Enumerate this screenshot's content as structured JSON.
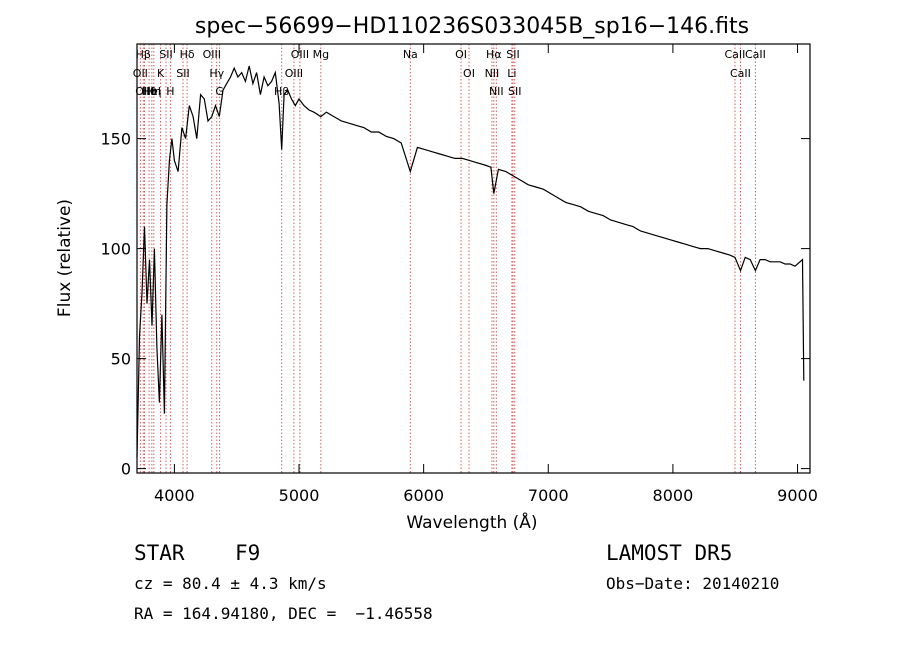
{
  "chart_data": {
    "type": "line",
    "title": "spec−56699−HD110236S033045B_sp16−146.fits",
    "xlabel": "Wavelength (Å)",
    "ylabel": "Flux (relative)",
    "xlim": [
      3700,
      9100
    ],
    "ylim": [
      -2,
      193
    ],
    "x_ticks": [
      4000,
      5000,
      6000,
      7000,
      8000,
      9000
    ],
    "y_ticks": [
      0,
      50,
      100,
      150
    ],
    "grid": false,
    "line_color": "#000000",
    "marker_color": "#d06060",
    "lines": [
      {
        "label": "Hβ",
        "wl": 3750
      },
      {
        "label": "OII",
        "wl": 3727
      },
      {
        "label": "OIII",
        "wl": 3760
      },
      {
        "label": "Hθ",
        "wl": 3797
      },
      {
        "label": "HeI",
        "wl": 3819
      },
      {
        "label": "Hη",
        "wl": 3835
      },
      {
        "label": "K",
        "wl": 3889
      },
      {
        "label": "SII",
        "wl": 3933
      },
      {
        "label": "H",
        "wl": 3968
      },
      {
        "label": "Hδ",
        "wl": 4102
      },
      {
        "label": "SII",
        "wl": 4069
      },
      {
        "label": "OIII",
        "wl": 4300
      },
      {
        "label": "Hγ",
        "wl": 4340
      },
      {
        "label": "G",
        "wl": 4363
      },
      {
        "label": "OIII",
        "wl": 5007
      },
      {
        "label": "OIII",
        "wl": 4959
      },
      {
        "label": "Hβ",
        "wl": 4861
      },
      {
        "label": "Mg",
        "wl": 5175
      },
      {
        "label": "Na",
        "wl": 5893
      },
      {
        "label": "OI",
        "wl": 6300
      },
      {
        "label": "OI",
        "wl": 6364
      },
      {
        "label": "Hα",
        "wl": 6563
      },
      {
        "label": "NII",
        "wl": 6548
      },
      {
        "label": "NII",
        "wl": 6583
      },
      {
        "label": "SII",
        "wl": 6717
      },
      {
        "label": "Li",
        "wl": 6708
      },
      {
        "label": "SII",
        "wl": 6731
      },
      {
        "label": "CaII",
        "wl": 8498
      },
      {
        "label": "CaII",
        "wl": 8542
      },
      {
        "label": "CaII",
        "wl": 8662
      }
    ],
    "series": [
      {
        "x": [
          3700,
          3720,
          3740,
          3760,
          3780,
          3800,
          3820,
          3840,
          3860,
          3880,
          3900,
          3920,
          3940,
          3960,
          3980,
          4000,
          4030,
          4060,
          4090,
          4120,
          4150,
          4180,
          4210,
          4240,
          4270,
          4300,
          4330,
          4360,
          4390,
          4420,
          4450,
          4480,
          4510,
          4540,
          4570,
          4600,
          4630,
          4660,
          4690,
          4720,
          4750,
          4780,
          4810,
          4840,
          4861,
          4880,
          4910,
          4940,
          4970,
          5000,
          5040,
          5080,
          5120,
          5175,
          5220,
          5280,
          5340,
          5400,
          5460,
          5520,
          5580,
          5640,
          5700,
          5760,
          5820,
          5893,
          5950,
          6010,
          6070,
          6130,
          6190,
          6250,
          6310,
          6370,
          6430,
          6490,
          6540,
          6563,
          6600,
          6660,
          6720,
          6780,
          6840,
          6900,
          6960,
          7020,
          7080,
          7140,
          7200,
          7260,
          7320,
          7380,
          7440,
          7500,
          7560,
          7620,
          7680,
          7740,
          7800,
          7860,
          7920,
          7980,
          8040,
          8100,
          8160,
          8220,
          8280,
          8340,
          8400,
          8460,
          8498,
          8542,
          8580,
          8620,
          8662,
          8700,
          8740,
          8780,
          8820,
          8860,
          8900,
          8940,
          8980,
          9020,
          9040,
          9050
        ],
        "y": [
          5,
          60,
          80,
          110,
          75,
          95,
          65,
          100,
          55,
          30,
          70,
          25,
          120,
          140,
          150,
          140,
          135,
          155,
          150,
          165,
          160,
          150,
          170,
          168,
          158,
          160,
          165,
          160,
          172,
          175,
          178,
          182,
          178,
          180,
          176,
          183,
          175,
          180,
          170,
          178,
          174,
          176,
          180,
          166,
          145,
          170,
          172,
          168,
          165,
          168,
          165,
          163,
          162,
          160,
          162,
          160,
          158,
          157,
          156,
          155,
          153,
          153,
          151,
          150,
          148,
          135,
          146,
          145,
          144,
          143,
          142,
          141,
          141,
          140,
          139,
          138,
          137,
          125,
          136,
          135,
          133,
          131,
          129,
          128,
          127,
          125,
          123,
          121,
          120,
          119,
          117,
          116,
          115,
          113,
          112,
          111,
          110,
          108,
          107,
          106,
          105,
          104,
          103,
          102,
          101,
          100,
          100,
          99,
          98,
          97,
          96,
          90,
          96,
          95,
          90,
          95,
          95,
          94,
          94,
          94,
          93,
          93,
          92,
          94,
          95,
          40
        ]
      }
    ]
  },
  "info": {
    "object_class": "STAR",
    "subclass": "F9",
    "survey": "LAMOST DR5",
    "cz": "cz = 80.4 ± 4.3 km/s",
    "obs_date": "Obs−Date: 20140210",
    "coords": "RA = 164.94180, DEC =  −1.46558"
  }
}
